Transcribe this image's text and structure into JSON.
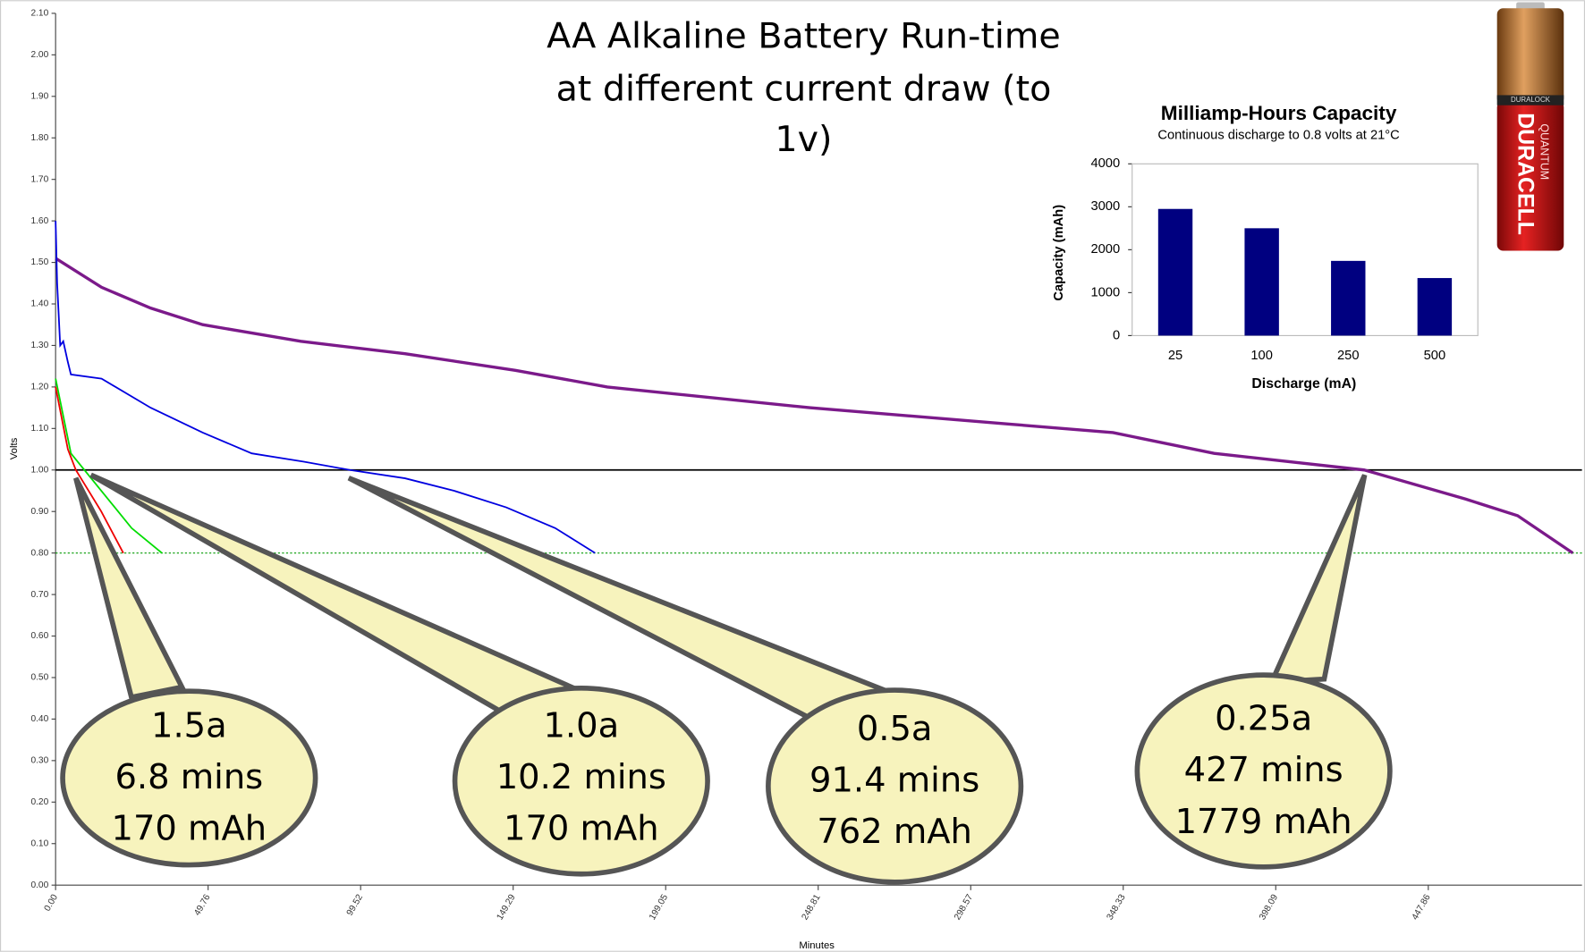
{
  "chart_data": [
    {
      "type": "line",
      "title": [
        "AA Alkaline Battery Run-time",
        "at different current draw (to",
        "1v)"
      ],
      "xlabel": "Minutes",
      "ylabel": "Volts",
      "xlim": [
        0,
        498
      ],
      "ylim": [
        0,
        2.1
      ],
      "xticks": [
        {
          "value": 0,
          "label": "0.00"
        },
        49.76,
        99.52,
        149.29,
        199.05,
        248.81,
        298.57,
        348.33,
        398.09,
        447.86
      ],
      "yticks": [
        {
          "value": 0,
          "label": "0.00"
        },
        {
          "value": 0.1,
          "label": "0.10"
        },
        {
          "value": 0.2,
          "label": "0.20"
        },
        {
          "value": 0.3,
          "label": "0.30"
        },
        {
          "value": 0.4,
          "label": "0.40"
        },
        {
          "value": 0.5,
          "label": "0.50"
        },
        {
          "value": 0.6,
          "label": "0.60"
        },
        {
          "value": 0.7,
          "label": "0.70"
        },
        {
          "value": 0.8,
          "label": "0.80"
        },
        {
          "value": 0.9,
          "label": "0.90"
        },
        {
          "value": 1,
          "label": "1.00"
        },
        {
          "value": 1.1,
          "label": "1.10"
        },
        {
          "value": 1.2,
          "label": "1.20"
        },
        {
          "value": 1.3,
          "label": "1.30"
        },
        {
          "value": 1.4,
          "label": "1.40"
        },
        {
          "value": 1.5,
          "label": "1.50"
        },
        {
          "value": 1.6,
          "label": "1.60"
        },
        {
          "value": 1.7,
          "label": "1.70"
        },
        {
          "value": 1.8,
          "label": "1.80"
        },
        {
          "value": 1.9,
          "label": "1.90"
        },
        {
          "value": 2,
          "label": "2.00"
        },
        {
          "value": 2.1,
          "label": "2.10"
        }
      ],
      "hlines": [
        {
          "value": 1,
          "color": "#000000",
          "dashed": false
        },
        {
          "value": 0.8,
          "color": "#009900",
          "dashed": true
        }
      ],
      "series": [
        {
          "color": "#7b1a8a",
          "x": [
            0,
            15,
            31,
            48,
            80,
            114,
            150,
            180,
            246,
            312,
            345,
            378,
            427,
            460,
            477,
            495
          ],
          "values": [
            1.51,
            1.44,
            1.39,
            1.35,
            1.31,
            1.28,
            1.24,
            1.2,
            1.15,
            1.11,
            1.09,
            1.04,
            1.0,
            0.93,
            0.89,
            0.8
          ]
        },
        {
          "color": "#0000e0",
          "x": [
            0,
            0.5,
            1.5,
            2.5,
            4,
            5,
            15,
            31,
            48,
            64,
            81,
            96,
            114,
            130,
            147,
            163,
            176
          ],
          "values": [
            1.6,
            1.45,
            1.3,
            1.31,
            1.26,
            1.23,
            1.22,
            1.15,
            1.09,
            1.04,
            1.02,
            1.0,
            0.98,
            0.95,
            0.91,
            0.86,
            0.8
          ]
        },
        {
          "color": "#00dd00",
          "x": [
            0,
            5,
            11.6,
            18.2,
            24.8,
            34.7
          ],
          "values": [
            1.22,
            1.04,
            0.98,
            0.92,
            0.86,
            0.8
          ]
        },
        {
          "color": "#ee0000",
          "x": [
            0,
            4,
            6.6,
            14.9,
            22.1
          ],
          "values": [
            1.2,
            1.05,
            1.0,
            0.9,
            0.8
          ]
        }
      ],
      "annotations": [
        [
          "1.5a",
          "6.8 mins",
          "170 mAh"
        ],
        [
          "1.0a",
          "10.2 mins",
          "170 mAh"
        ],
        [
          "0.5a",
          "91.4 mins",
          "762 mAh"
        ],
        [
          "0.25a",
          "427 mins",
          "1779 mAh"
        ]
      ]
    },
    {
      "type": "bar",
      "title": "Milliamp-Hours Capacity",
      "subtitle": "Continuous discharge to 0.8 volts at 21°C",
      "xlabel": "Discharge (mA)",
      "ylabel": "Capacity (mAh)",
      "categories": [
        "25",
        "100",
        "250",
        "500"
      ],
      "values": [
        2950,
        2500,
        1740,
        1340
      ],
      "color": "#000080",
      "ylim": [
        0,
        4000
      ],
      "yticks": [
        0,
        1000,
        2000,
        3000,
        4000
      ]
    }
  ],
  "battery": {
    "brand": "DURACELL",
    "lines": [
      "DURALOCK",
      "QUANTUM"
    ]
  }
}
